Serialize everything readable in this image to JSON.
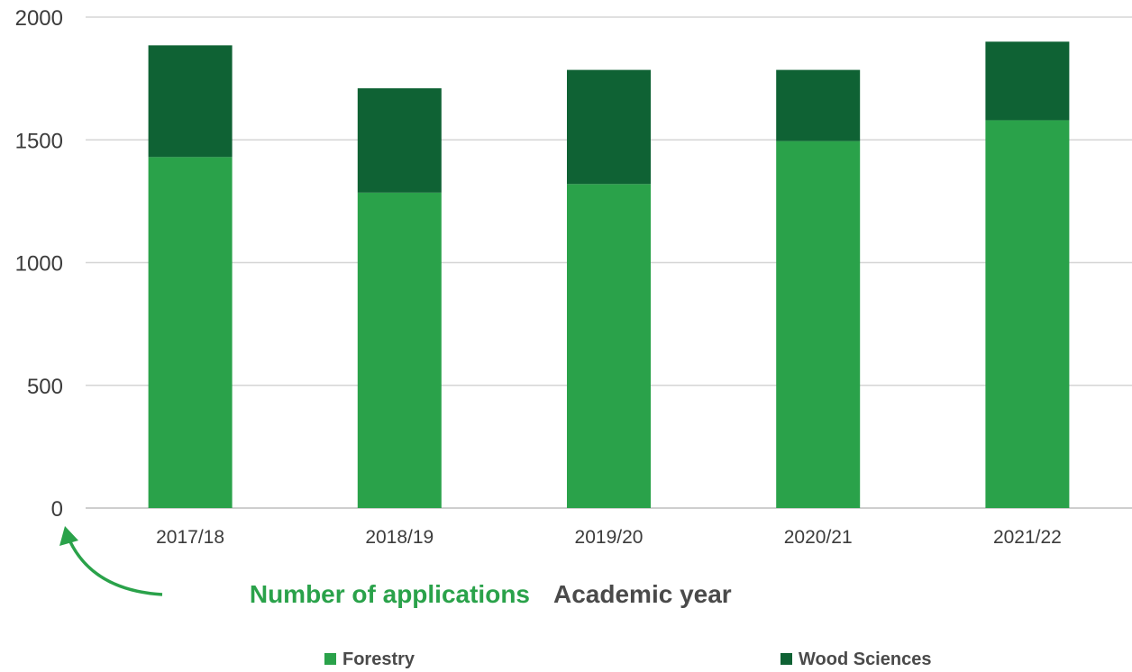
{
  "chart_data": {
    "type": "bar",
    "stacked": true,
    "categories": [
      "2017/18",
      "2018/19",
      "2019/20",
      "2020/21",
      "2021/22"
    ],
    "series": [
      {
        "name": "Forestry",
        "values": [
          1430,
          1285,
          1320,
          1495,
          1580
        ],
        "color": "#2aa24a"
      },
      {
        "name": "Wood Sciences",
        "values": [
          455,
          425,
          465,
          290,
          320
        ],
        "color": "#0f6234"
      }
    ],
    "yticks": [
      "0",
      "500",
      "1000",
      "1500",
      "2000"
    ],
    "ylim": [
      0,
      2000
    ],
    "ylabel": "Number of applications",
    "xlabel": "Academic year",
    "grid": true,
    "legend_position": "bottom",
    "colors": {
      "ylabel": "#2aa24a",
      "xlabel": "#4a4a4a",
      "grid": "#d5d5d5",
      "axis": "#bdbdbd",
      "arrow": "#2aa24a"
    }
  }
}
